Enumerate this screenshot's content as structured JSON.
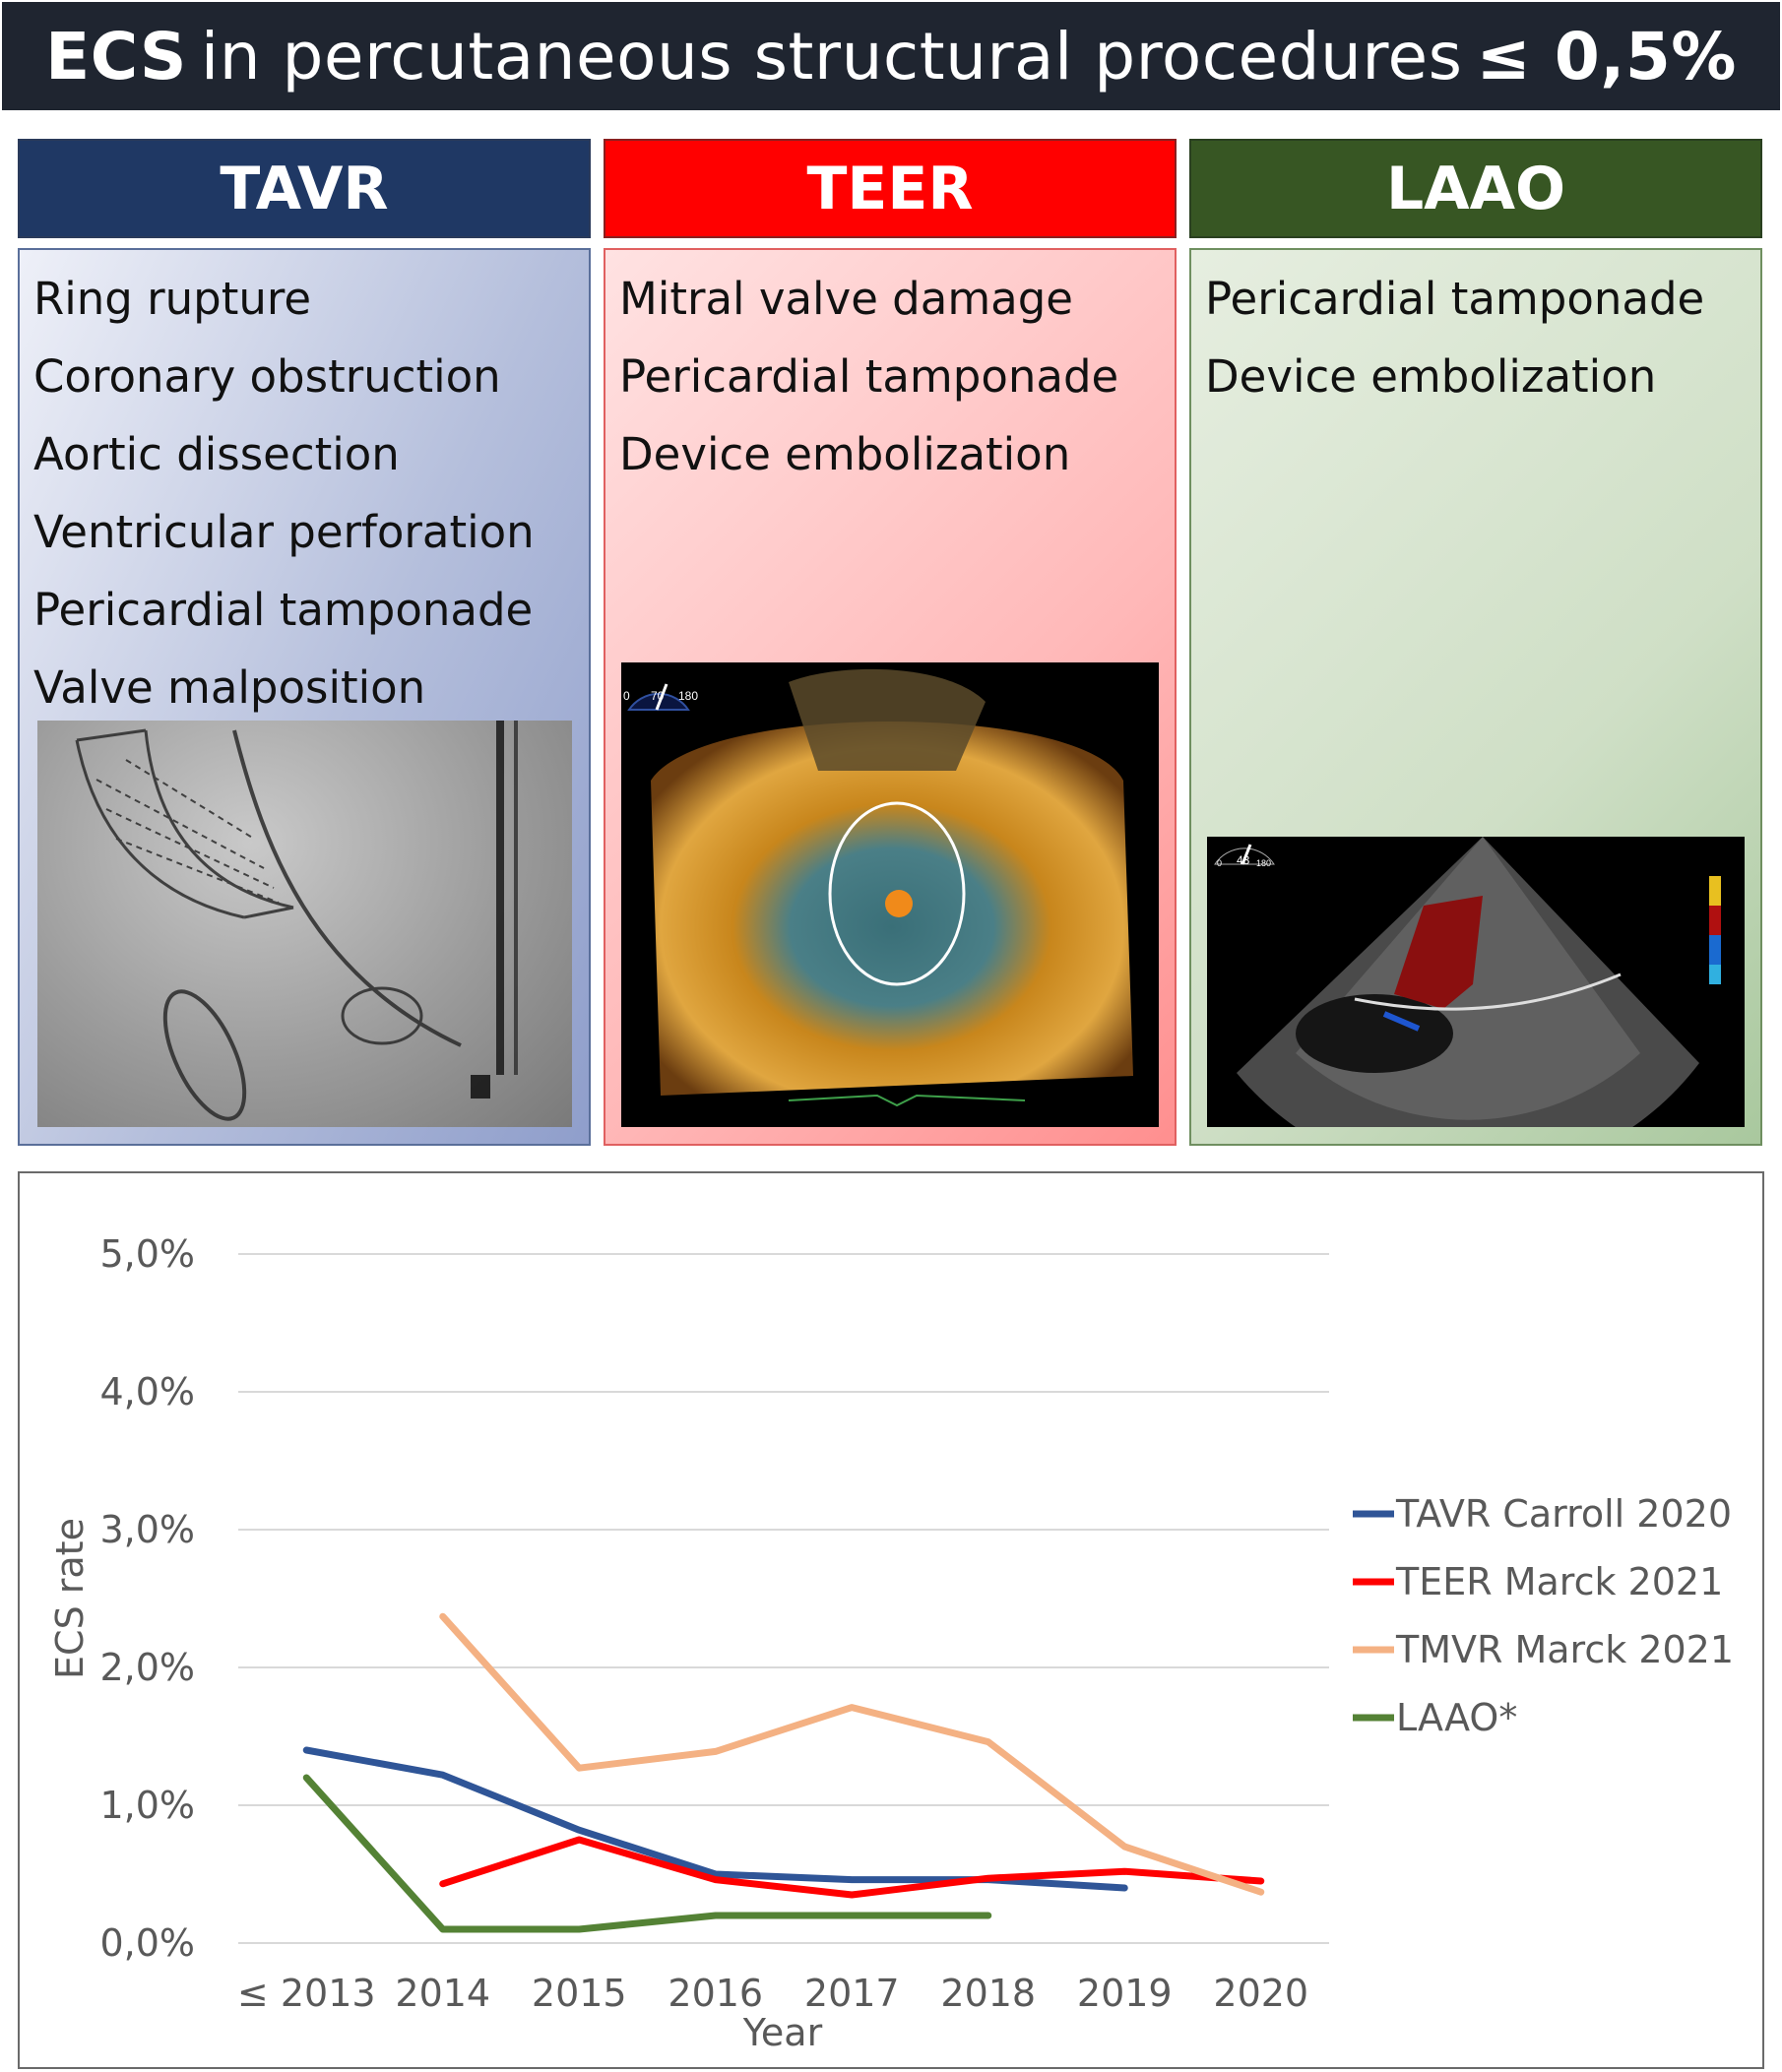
{
  "banner": {
    "prefix": "ECS",
    "middle": "in percutaneous structural procedures",
    "suffix": "≤ 0,5%"
  },
  "columns": [
    {
      "title": "TAVR",
      "items": [
        "Ring rupture",
        "Coronary obstruction",
        "Aortic dissection",
        "Ventricular perforation",
        "Pericardial tamponade",
        "Valve malposition"
      ],
      "image": "fluoroscopy-image"
    },
    {
      "title": "TEER",
      "items": [
        "Mitral valve damage",
        "Pericardial tamponade",
        "Device embolization"
      ],
      "image": "3d-echo-image",
      "image_labels": [
        "0",
        "70",
        "180"
      ]
    },
    {
      "title": "LAAO",
      "items": [
        "Pericardial tamponade",
        "Device embolization"
      ],
      "image": "tee-doppler-image",
      "image_labels": [
        "0",
        "43",
        "180"
      ]
    }
  ],
  "colors": {
    "banner_bg": "#1f2530",
    "tavr": "#1f3864",
    "teer": "#ff0000",
    "laao": "#375623"
  },
  "chart_data": {
    "type": "line",
    "title": "",
    "xlabel": "Year",
    "ylabel": "ECS rate",
    "categories": [
      "≤ 2013",
      "2014",
      "2015",
      "2016",
      "2017",
      "2018",
      "2019",
      "2020"
    ],
    "yticks": [
      "0,0%",
      "1,0%",
      "2,0%",
      "3,0%",
      "4,0%",
      "5,0%"
    ],
    "ylim": [
      0,
      5
    ],
    "grid": true,
    "legend_position": "right",
    "series": [
      {
        "name": "TAVR Carroll 2020",
        "color": "#2f5597",
        "values": [
          1.4,
          1.22,
          0.82,
          0.5,
          0.46,
          0.46,
          0.4,
          null
        ]
      },
      {
        "name": "TEER Marck 2021",
        "color": "#ff0000",
        "values": [
          null,
          0.43,
          0.75,
          0.46,
          0.35,
          0.47,
          0.52,
          0.45
        ]
      },
      {
        "name": "TMVR Marck 2021",
        "color": "#f4b183",
        "values": [
          null,
          2.37,
          1.27,
          1.39,
          1.71,
          1.46,
          0.7,
          0.37
        ]
      },
      {
        "name": "LAAO*",
        "color": "#548235",
        "values": [
          1.2,
          0.1,
          0.1,
          0.2,
          0.2,
          0.2,
          null,
          null
        ]
      }
    ]
  }
}
